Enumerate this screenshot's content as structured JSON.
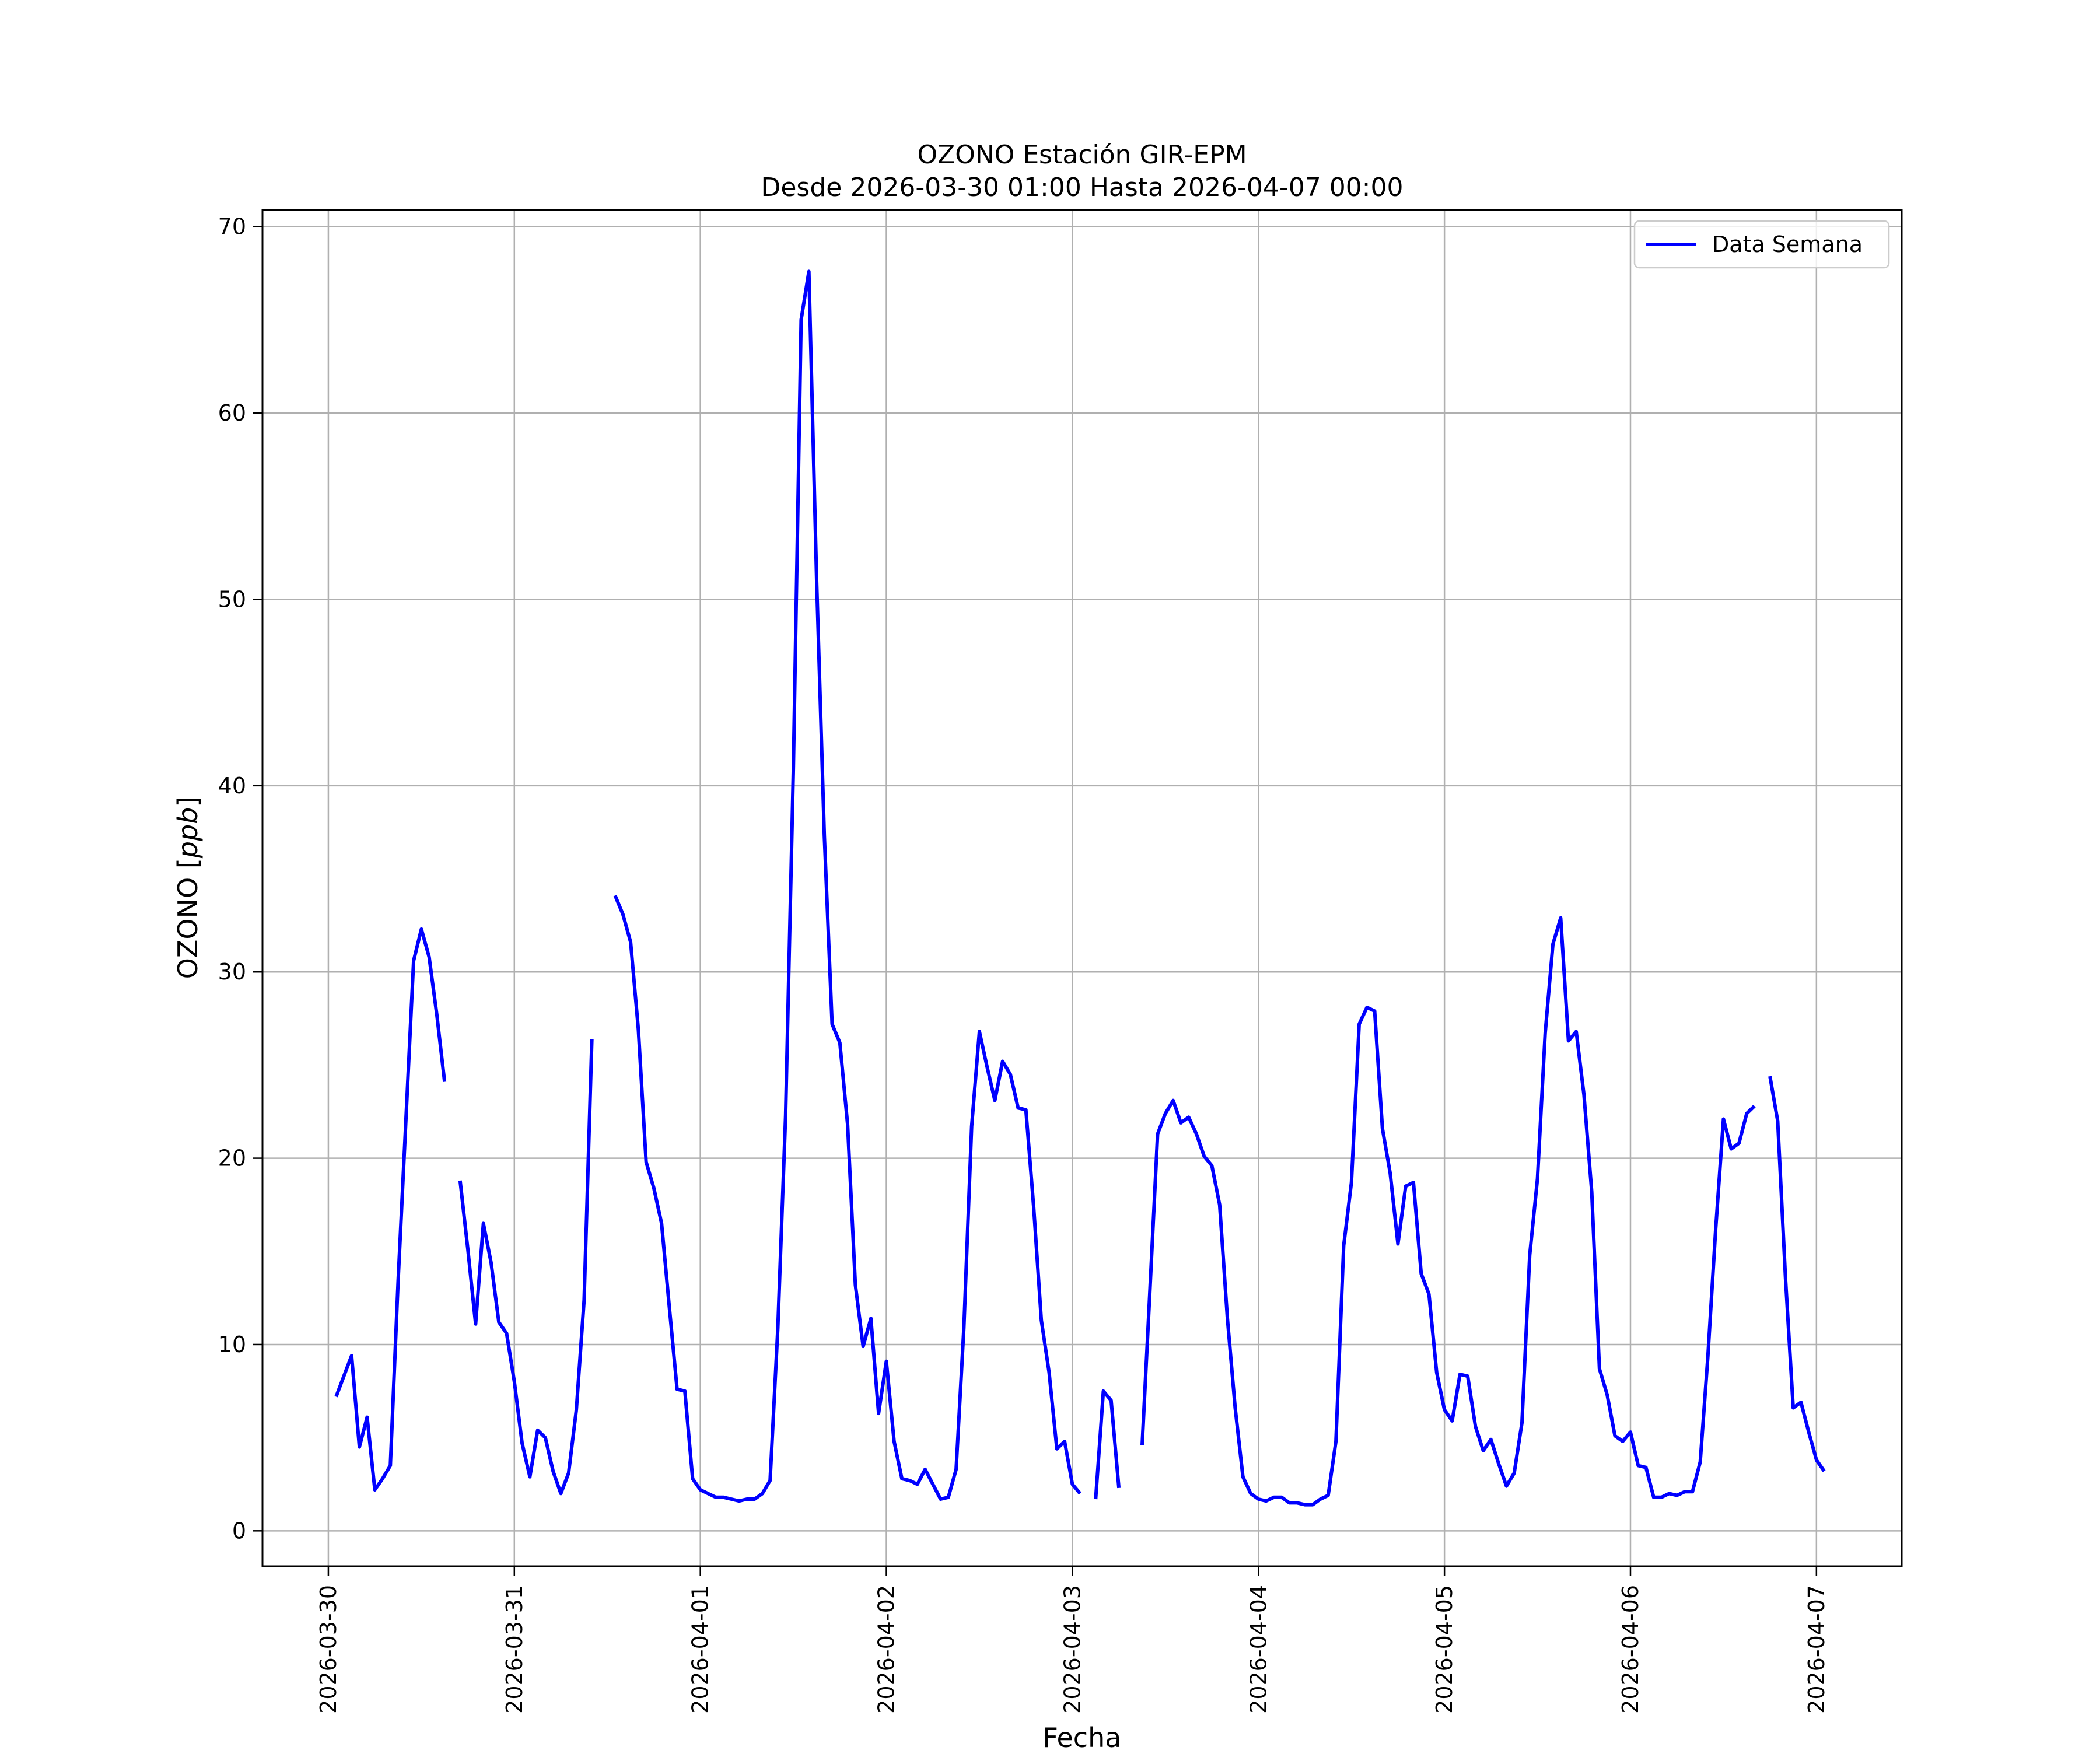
{
  "chart_data": {
    "type": "line",
    "title": "OZONO Estación GIR-EPM",
    "subtitle": "Desde 2026-03-30 01:00 Hasta 2026-04-07 00:00",
    "xlabel": "Fecha",
    "ylabel": "OZONO [ppb]",
    "ylabel_plain": "OZONO [",
    "ylabel_unit": "ppb",
    "ylabel_close": "]",
    "xlim": [
      "2026-03-29 15:30",
      "2026-04-07 11:00"
    ],
    "ylim": [
      -1.9,
      70.9
    ],
    "x_ticks": [
      "2026-03-30",
      "2026-03-31",
      "2026-04-01",
      "2026-04-02",
      "2026-04-03",
      "2026-04-04",
      "2026-04-05",
      "2026-04-06",
      "2026-04-07"
    ],
    "y_ticks": [
      "0",
      "10",
      "20",
      "30",
      "40",
      "50",
      "60",
      "70"
    ],
    "grid": true,
    "legend_position": "upper right",
    "colors": {
      "series": "#0000ff",
      "grid": "#b0b0b0",
      "frame": "#000000"
    },
    "series": [
      {
        "name": "Data Semana",
        "start": "2026-03-30 01:00",
        "interval_hours": 1,
        "values": [
          7.2,
          8.3,
          9.4,
          4.5,
          6.1,
          2.2,
          2.8,
          3.5,
          13.4,
          22.0,
          30.6,
          32.3,
          30.8,
          27.7,
          24.1,
          null,
          18.8,
          15.1,
          11.1,
          16.5,
          14.4,
          11.2,
          10.6,
          8.0,
          4.7,
          2.9,
          5.4,
          5.0,
          3.2,
          2.0,
          3.1,
          6.5,
          12.4,
          26.4,
          null,
          null,
          34.1,
          33.1,
          31.6,
          26.9,
          19.8,
          18.4,
          16.5,
          12.0,
          7.6,
          7.5,
          2.8,
          2.2,
          2.0,
          1.8,
          1.8,
          1.7,
          1.6,
          1.7,
          1.7,
          2.0,
          2.7,
          10.9,
          22.3,
          40.9,
          65.0,
          67.6,
          51.0,
          37.3,
          27.2,
          26.2,
          21.8,
          13.2,
          9.9,
          11.4,
          6.3,
          9.1,
          4.8,
          2.8,
          2.7,
          2.5,
          3.3,
          2.5,
          1.7,
          1.8,
          3.3,
          10.9,
          21.7,
          26.8,
          24.9,
          23.1,
          25.2,
          24.5,
          22.7,
          22.6,
          17.4,
          11.3,
          8.5,
          4.4,
          4.8,
          2.5,
          2.0,
          null,
          1.7,
          7.5,
          7.0,
          2.3,
          null,
          null,
          4.6,
          12.9,
          21.3,
          22.4,
          23.1,
          21.9,
          22.2,
          21.3,
          20.1,
          19.6,
          17.5,
          11.4,
          6.6,
          2.9,
          2.0,
          1.7,
          1.6,
          1.8,
          1.8,
          1.5,
          1.5,
          1.4,
          1.4,
          1.7,
          1.9,
          4.8,
          15.3,
          18.7,
          27.2,
          28.1,
          27.9,
          21.6,
          19.2,
          15.4,
          18.5,
          18.7,
          13.8,
          12.7,
          8.5,
          6.5,
          5.9,
          8.4,
          8.3,
          5.6,
          4.3,
          4.9,
          3.6,
          2.4,
          3.1,
          5.8,
          14.8,
          18.9,
          26.7,
          31.5,
          32.9,
          26.3,
          26.8,
          23.4,
          18.2,
          8.7,
          7.3,
          5.1,
          4.8,
          5.3,
          3.5,
          3.4,
          1.8,
          1.8,
          2.0,
          1.9,
          2.1,
          2.1,
          3.7,
          9.4,
          16.2,
          22.1,
          20.5,
          20.8,
          22.4,
          22.8,
          null,
          24.4,
          22.0,
          13.6,
          6.6,
          6.9,
          5.3,
          3.8,
          3.2
        ]
      }
    ]
  }
}
